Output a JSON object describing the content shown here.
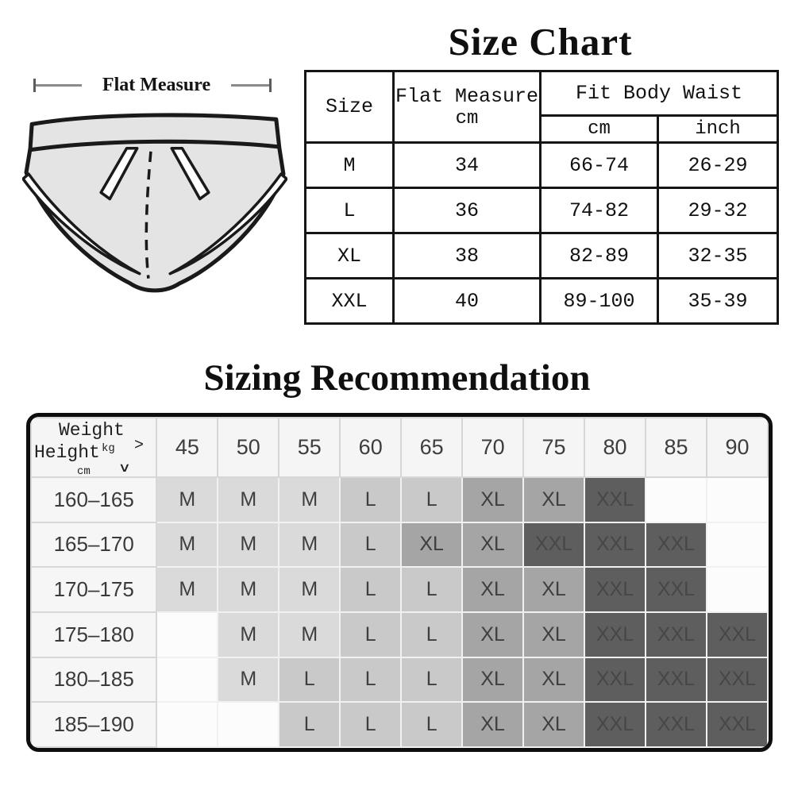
{
  "size_chart": {
    "title": "Size Chart",
    "flat_measure_annotation": "Flat Measure",
    "table": {
      "col_size": "Size",
      "col_flat_measure": "Flat Measure",
      "col_flat_measure_unit": "cm",
      "col_fit_body_waist": "Fit Body Waist",
      "col_waist_cm": "cm",
      "col_waist_inch": "inch",
      "rows": [
        {
          "size": "M",
          "flat_measure_cm": "34",
          "waist_cm": "66-74",
          "waist_inch": "26-29"
        },
        {
          "size": "L",
          "flat_measure_cm": "36",
          "waist_cm": "74-82",
          "waist_inch": "29-32"
        },
        {
          "size": "XL",
          "flat_measure_cm": "38",
          "waist_cm": "82-89",
          "waist_inch": "32-35"
        },
        {
          "size": "XXL",
          "flat_measure_cm": "40",
          "waist_cm": "89-100",
          "waist_inch": "35-39"
        }
      ]
    }
  },
  "sizing_recommendation": {
    "title": "Sizing Recommendation",
    "corner": {
      "weight_label": "Weight",
      "weight_unit": "kg",
      "weight_arrow": ">",
      "height_label": "Height",
      "height_unit": "cm",
      "height_arrow": "∨"
    },
    "weights": [
      "45",
      "50",
      "55",
      "60",
      "65",
      "70",
      "75",
      "80",
      "85",
      "90"
    ],
    "palette": {
      "M": "#dadada",
      "L": "#c9c9c9",
      "XL": "#a5a5a5",
      "XXL": "#5e5e5e",
      "blank": "#fcfcfc"
    },
    "rows": [
      {
        "height": "160–165",
        "cells": [
          "M",
          "M",
          "M",
          "L",
          "L",
          "XL",
          "XL",
          "XXL",
          "",
          ""
        ]
      },
      {
        "height": "165–170",
        "cells": [
          "M",
          "M",
          "M",
          "L",
          "XL",
          "XL",
          "XXL",
          "XXL",
          "XXL",
          ""
        ]
      },
      {
        "height": "170–175",
        "cells": [
          "M",
          "M",
          "M",
          "L",
          "L",
          "XL",
          "XL",
          "XXL",
          "XXL",
          ""
        ]
      },
      {
        "height": "175–180",
        "cells": [
          "",
          "M",
          "M",
          "L",
          "L",
          "XL",
          "XL",
          "XXL",
          "XXL",
          "XXL"
        ]
      },
      {
        "height": "180–185",
        "cells": [
          "",
          "M",
          "L",
          "L",
          "L",
          "XL",
          "XL",
          "XXL",
          "XXL",
          "XXL"
        ]
      },
      {
        "height": "185–190",
        "cells": [
          "",
          "",
          "L",
          "L",
          "L",
          "XL",
          "XL",
          "XXL",
          "XXL",
          "XXL"
        ]
      }
    ]
  }
}
